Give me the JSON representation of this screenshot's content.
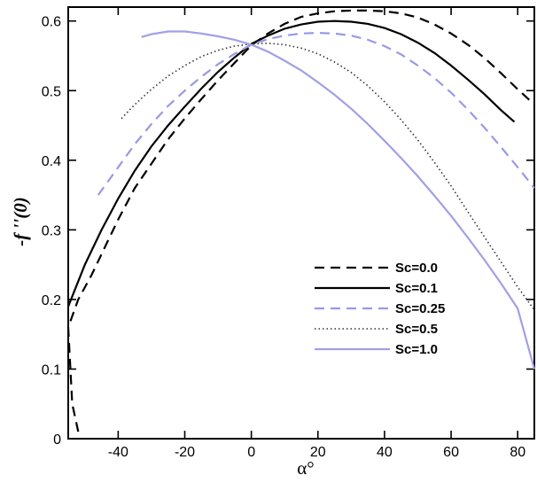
{
  "chart_data": {
    "type": "line",
    "xlabel": "α°",
    "ylabel": "-f ''(0)",
    "xlim": [
      -55,
      85
    ],
    "ylim": [
      0,
      0.62
    ],
    "x_ticks": [
      -40,
      -20,
      0,
      20,
      40,
      60,
      80
    ],
    "y_ticks": [
      0,
      0.1,
      0.2,
      0.3,
      0.4,
      0.5,
      0.6
    ],
    "x_tick_labels": [
      "-40",
      "-20",
      "0",
      "20",
      "40",
      "60",
      "80"
    ],
    "y_tick_labels": [
      "0",
      "0.1",
      "0.2",
      "0.3",
      "0.4",
      "0.5",
      "0.6"
    ],
    "grid": false,
    "legend_position": "center-right",
    "series": [
      {
        "name": "Sc=0.0",
        "color": "#000000",
        "dash": "dashed",
        "x": [
          -52,
          -53.8,
          -55,
          -52,
          -48,
          -44,
          -40,
          -35,
          -30,
          -25,
          -20,
          -15,
          -10,
          -5,
          0,
          5,
          10,
          15,
          20,
          25,
          30,
          35,
          40,
          45,
          50,
          55,
          60,
          65,
          70,
          75,
          80,
          85
        ],
        "y": [
          0.01,
          0.05,
          0.16,
          0.2,
          0.235,
          0.275,
          0.315,
          0.36,
          0.395,
          0.43,
          0.46,
          0.488,
          0.515,
          0.54,
          0.565,
          0.582,
          0.596,
          0.606,
          0.611,
          0.614,
          0.615,
          0.615,
          0.614,
          0.611,
          0.605,
          0.595,
          0.582,
          0.566,
          0.547,
          0.525,
          0.502,
          0.48
        ]
      },
      {
        "name": "Sc=0.1",
        "color": "#000000",
        "dash": "solid",
        "x": [
          -55,
          -50,
          -45,
          -40,
          -35,
          -30,
          -25,
          -20,
          -15,
          -10,
          -5,
          0,
          5,
          10,
          15,
          20,
          25,
          30,
          35,
          40,
          45,
          50,
          55,
          60,
          65,
          70,
          75,
          79
        ],
        "y": [
          0.19,
          0.25,
          0.3,
          0.345,
          0.385,
          0.42,
          0.45,
          0.477,
          0.503,
          0.527,
          0.548,
          0.567,
          0.579,
          0.589,
          0.595,
          0.599,
          0.6,
          0.599,
          0.596,
          0.59,
          0.581,
          0.569,
          0.554,
          0.536,
          0.516,
          0.495,
          0.472,
          0.455
        ]
      },
      {
        "name": "Sc=0.25",
        "color": "#9999e6",
        "dash": "dashed",
        "x": [
          -46,
          -40,
          -35,
          -30,
          -25,
          -20,
          -15,
          -10,
          -5,
          0,
          5,
          10,
          15,
          20,
          25,
          30,
          35,
          40,
          45,
          50,
          55,
          60,
          65,
          70,
          75,
          80,
          85
        ],
        "y": [
          0.35,
          0.39,
          0.423,
          0.452,
          0.478,
          0.5,
          0.52,
          0.538,
          0.553,
          0.566,
          0.574,
          0.579,
          0.582,
          0.583,
          0.582,
          0.579,
          0.573,
          0.564,
          0.552,
          0.536,
          0.518,
          0.497,
          0.473,
          0.447,
          0.419,
          0.39,
          0.36
        ]
      },
      {
        "name": "Sc=0.5",
        "color": "#333333",
        "dash": "dotted",
        "x": [
          -39,
          -35,
          -30,
          -25,
          -20,
          -15,
          -10,
          -5,
          0,
          5,
          10,
          15,
          20,
          25,
          30,
          35,
          40,
          45,
          50,
          55,
          60,
          65,
          70,
          75,
          80,
          85
        ],
        "y": [
          0.46,
          0.48,
          0.502,
          0.521,
          0.536,
          0.549,
          0.558,
          0.564,
          0.567,
          0.568,
          0.566,
          0.561,
          0.553,
          0.541,
          0.526,
          0.507,
          0.484,
          0.458,
          0.429,
          0.397,
          0.363,
          0.326,
          0.29,
          0.254,
          0.218,
          0.185
        ]
      },
      {
        "name": "Sc=1.0",
        "color": "#a0a0e6",
        "dash": "solid",
        "x": [
          -33,
          -30,
          -25,
          -20,
          -15,
          -10,
          -5,
          0,
          5,
          10,
          15,
          20,
          25,
          30,
          35,
          40,
          45,
          50,
          55,
          60,
          65,
          70,
          75,
          80,
          85
        ],
        "y": [
          0.577,
          0.581,
          0.585,
          0.585,
          0.582,
          0.578,
          0.573,
          0.566,
          0.556,
          0.543,
          0.529,
          0.512,
          0.494,
          0.474,
          0.452,
          0.428,
          0.403,
          0.377,
          0.349,
          0.32,
          0.289,
          0.257,
          0.223,
          0.187,
          0.1
        ]
      }
    ]
  }
}
